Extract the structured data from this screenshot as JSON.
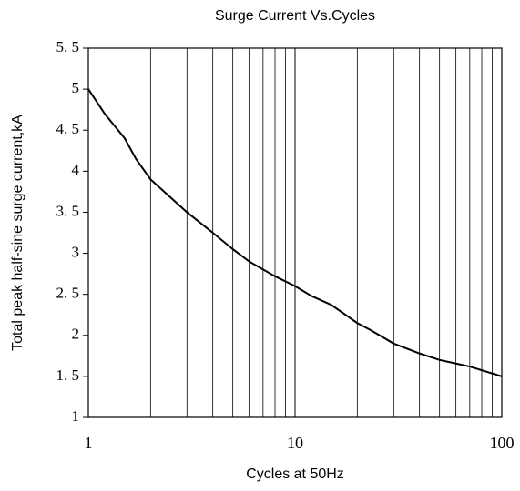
{
  "chart_data": {
    "type": "line",
    "title": "Surge Current Vs.Cycles",
    "xlabel": "Cycles at 50Hz",
    "ylabel": "Total peak half-sine surge current,kA",
    "x": [
      1,
      1.2,
      1.5,
      1.7,
      2,
      3,
      4,
      5,
      6,
      8,
      10,
      12,
      15,
      20,
      23,
      30,
      40,
      50,
      70,
      100
    ],
    "series": [
      {
        "name": "Surge current",
        "color": "#000000",
        "values": [
          5.0,
          4.7,
          4.4,
          4.15,
          3.9,
          3.5,
          3.25,
          3.05,
          2.9,
          2.72,
          2.6,
          2.48,
          2.37,
          2.15,
          2.07,
          1.9,
          1.78,
          1.7,
          1.62,
          1.5
        ]
      }
    ],
    "xlim": [
      1,
      100
    ],
    "xticks": [
      1,
      10,
      100
    ],
    "xscale": "log",
    "ylim": [
      1,
      5.5
    ],
    "yticks": [
      1,
      {
        "value": 1.5,
        "label": "1. 5"
      },
      2,
      {
        "value": 2.5,
        "label": "2. 5"
      },
      3,
      {
        "value": 3.5,
        "label": "3. 5"
      },
      4,
      {
        "value": 4.5,
        "label": "4. 5"
      },
      5,
      {
        "value": 5.5,
        "label": "5. 5"
      }
    ],
    "grid": "x"
  }
}
